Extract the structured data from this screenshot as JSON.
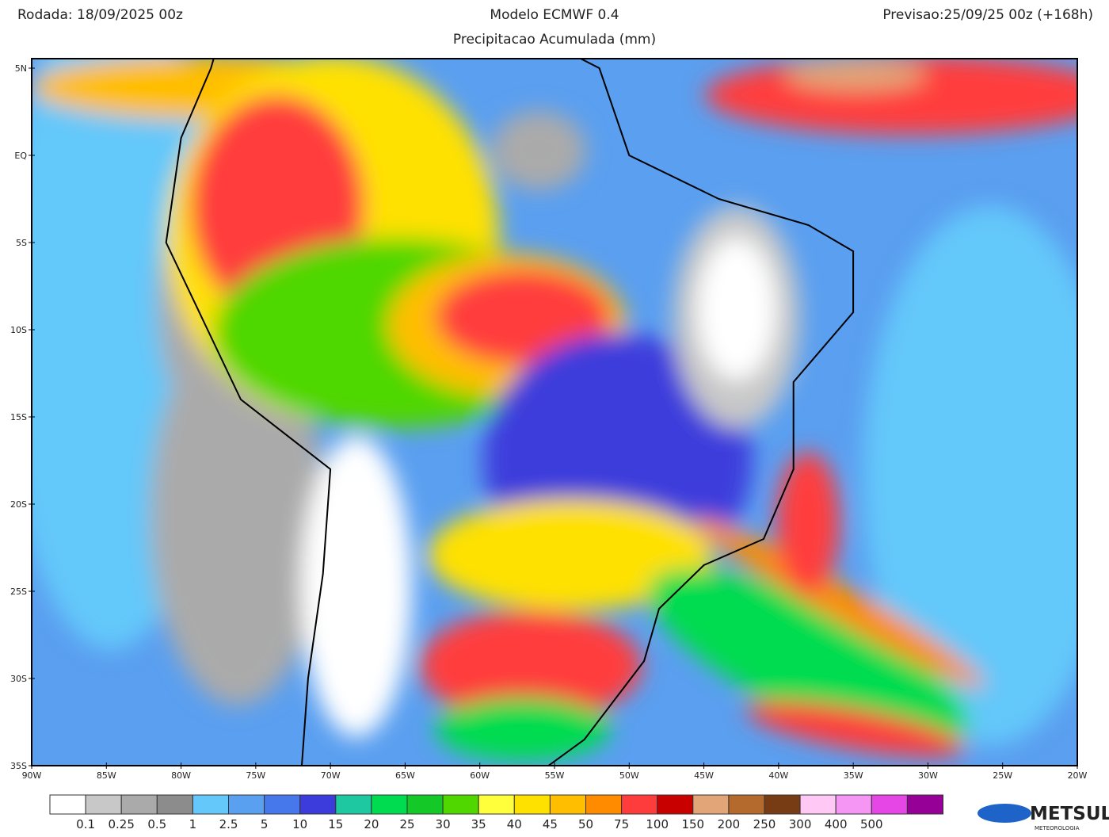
{
  "header": {
    "run": "Rodada: 18/09/2025 00z",
    "model": "Modelo ECMWF 0.4",
    "forecast": "Previsao:25/09/25 00z (+168h)",
    "subtitle": "Precipitacao Acumulada (mm)"
  },
  "map": {
    "lat_labels": [
      "5N",
      "EQ",
      "5S",
      "10S",
      "15S",
      "20S",
      "25S",
      "30S",
      "35S"
    ],
    "lon_labels": [
      "90W",
      "85W",
      "80W",
      "75W",
      "70W",
      "65W",
      "60W",
      "55W",
      "50W",
      "45W",
      "40W",
      "35W",
      "30W",
      "25W",
      "20W"
    ]
  },
  "colorbar": {
    "labels": [
      "0.1",
      "0.25",
      "0.5",
      "1",
      "2.5",
      "5",
      "10",
      "15",
      "20",
      "25",
      "30",
      "35",
      "40",
      "45",
      "50",
      "75",
      "100",
      "150",
      "200",
      "250",
      "300",
      "400",
      "500"
    ],
    "colors": [
      "#ffffff",
      "#c8c8c8",
      "#aaaaaa",
      "#8c8c8c",
      "#64c8fa",
      "#5aa0f0",
      "#4678eb",
      "#3c3cdc",
      "#1ec8a0",
      "#00dc50",
      "#14c828",
      "#50d700",
      "#ffff3c",
      "#ffe100",
      "#ffbe00",
      "#ff8c00",
      "#ff3c3c",
      "#c80000",
      "#e1a578",
      "#b4692d",
      "#783c14",
      "#ffc8f5",
      "#f596f5",
      "#e646e6",
      "#960096"
    ]
  },
  "logo": {
    "name": "METSUL",
    "tagline": "METEOROLOGIA"
  }
}
